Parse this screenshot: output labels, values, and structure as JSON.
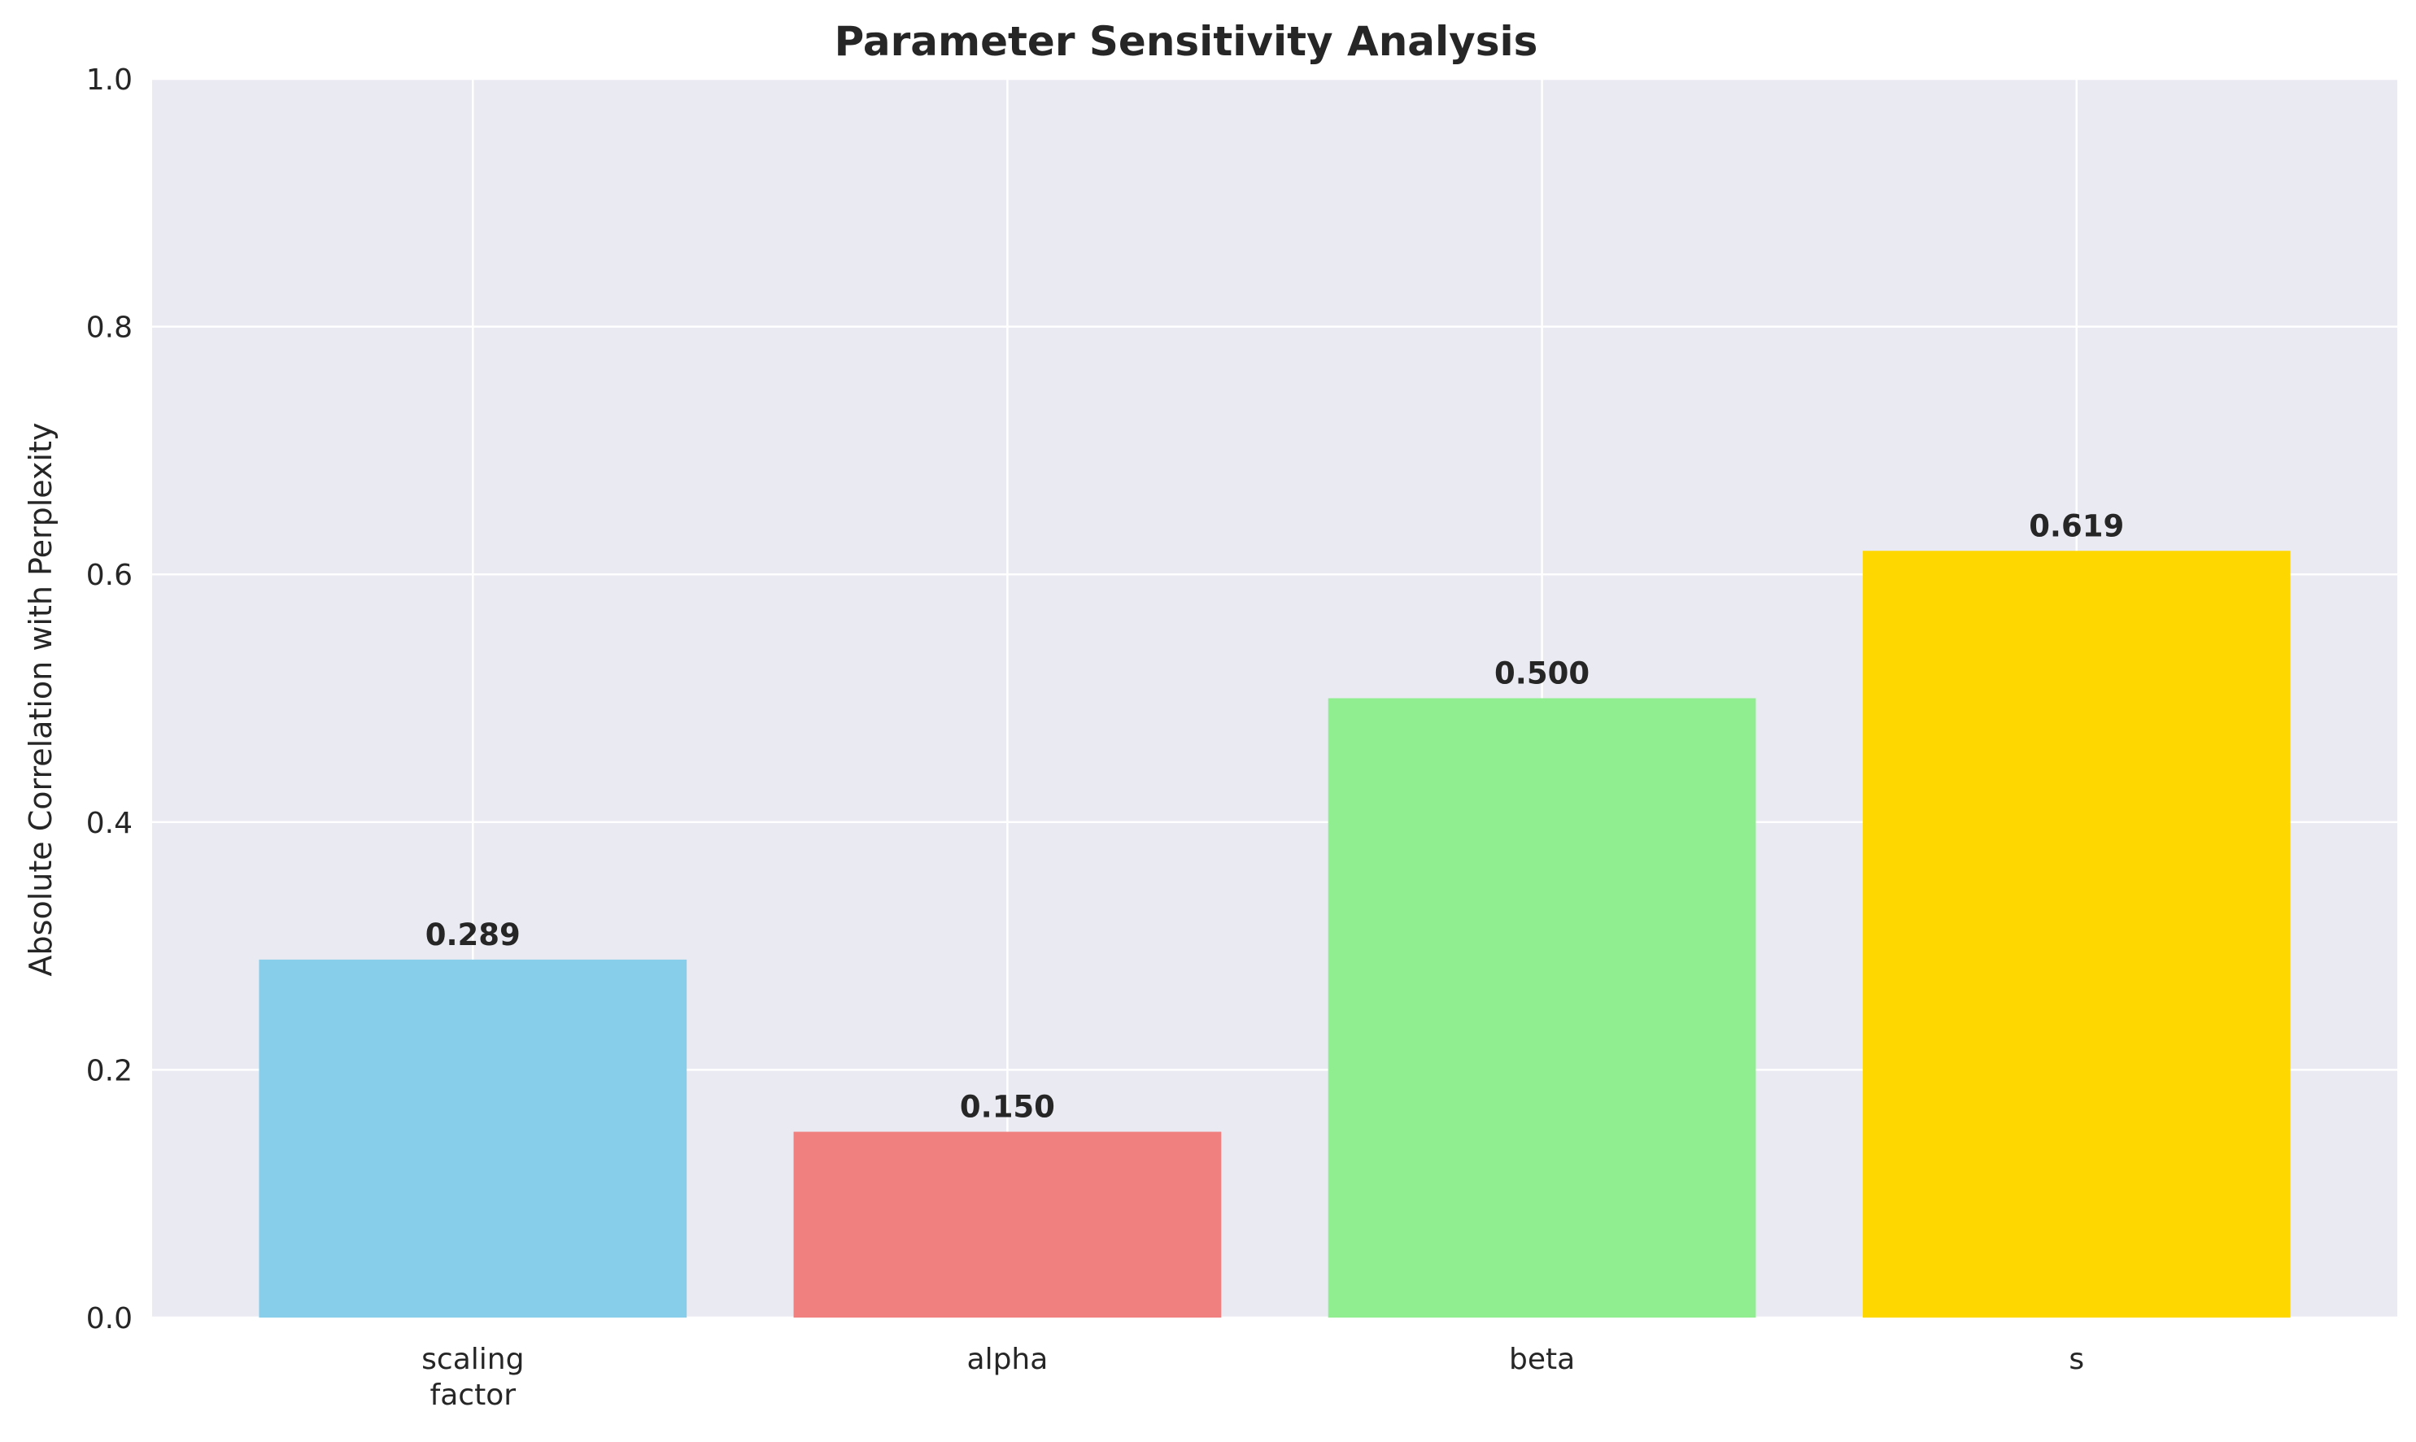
{
  "chart_data": {
    "type": "bar",
    "title": "Parameter Sensitivity Analysis",
    "xlabel": "",
    "ylabel": "Absolute Correlation with Perplexity",
    "categories": [
      "scaling\nfactor",
      "alpha",
      "beta",
      "s"
    ],
    "values": [
      0.289,
      0.15,
      0.5,
      0.619
    ],
    "value_labels": [
      "0.289",
      "0.150",
      "0.500",
      "0.619"
    ],
    "colors": [
      "#87ceeb",
      "#f08080",
      "#90ee90",
      "#ffd700"
    ],
    "ylim": [
      0,
      1.0
    ],
    "yticks": [
      0.0,
      0.2,
      0.4,
      0.6,
      0.8,
      1.0
    ],
    "ytick_labels": [
      "0.0",
      "0.2",
      "0.4",
      "0.6",
      "0.8",
      "1.0"
    ],
    "grid": true,
    "background": "#eaeaf2"
  }
}
